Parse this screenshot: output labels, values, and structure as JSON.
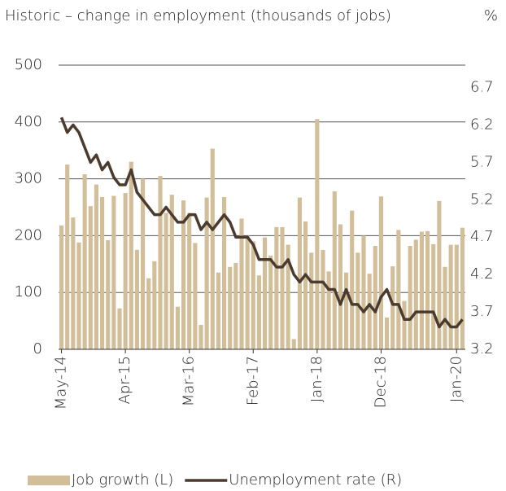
{
  "chart_data": {
    "type": "bar_line",
    "title": "Historic – change in employment (thousands of jobs)",
    "y2_label": "%",
    "categories": [
      "May-14",
      null,
      null,
      null,
      null,
      null,
      null,
      null,
      null,
      null,
      null,
      "Apr-15",
      null,
      null,
      null,
      null,
      null,
      null,
      null,
      null,
      null,
      null,
      "Mar-16",
      null,
      null,
      null,
      null,
      null,
      null,
      null,
      null,
      null,
      null,
      "Feb-17",
      null,
      null,
      null,
      null,
      null,
      null,
      null,
      null,
      null,
      null,
      "Jan-18",
      null,
      null,
      null,
      null,
      null,
      null,
      null,
      null,
      null,
      null,
      "Dec-18",
      null,
      null,
      null,
      null,
      null,
      null,
      null,
      null,
      null,
      null,
      null,
      null,
      "Jan-20",
      null
    ],
    "series": [
      {
        "name": "Job growth (L)",
        "color": "#d2bf9a",
        "axis": "y",
        "values": [
          218,
          325,
          232,
          188,
          308,
          252,
          290,
          268,
          192,
          270,
          72,
          275,
          330,
          175,
          300,
          125,
          155,
          305,
          240,
          272,
          75,
          262,
          240,
          187,
          43,
          267,
          353,
          135,
          268,
          145,
          152,
          230,
          200,
          190,
          130,
          197,
          165,
          215,
          215,
          184,
          18,
          267,
          225,
          170,
          405,
          175,
          137,
          278,
          220,
          135,
          244,
          170,
          200,
          133,
          182,
          269,
          56,
          146,
          210,
          85,
          182,
          193,
          207,
          208,
          185,
          261,
          145,
          184,
          184,
          214
        ]
      },
      {
        "name": "Unemployment rate (R)",
        "color": "#4b3a2e",
        "axis": "y2",
        "values": [
          6.3,
          6.1,
          6.2,
          6.1,
          5.9,
          5.7,
          5.8,
          5.6,
          5.7,
          5.5,
          5.4,
          5.4,
          5.6,
          5.3,
          5.2,
          5.1,
          5.0,
          5.0,
          5.1,
          5.0,
          4.9,
          4.9,
          5.0,
          5.0,
          4.8,
          4.9,
          4.8,
          4.9,
          5.0,
          4.9,
          4.7,
          4.7,
          4.7,
          4.6,
          4.4,
          4.4,
          4.4,
          4.3,
          4.3,
          4.4,
          4.2,
          4.1,
          4.2,
          4.1,
          4.1,
          4.1,
          4.0,
          4.0,
          3.8,
          4.0,
          3.8,
          3.8,
          3.7,
          3.8,
          3.7,
          3.9,
          4.0,
          3.8,
          3.8,
          3.6,
          3.6,
          3.7,
          3.7,
          3.7,
          3.7,
          3.5,
          3.6,
          3.5,
          3.5,
          3.6
        ]
      }
    ],
    "ylim": [
      0,
      500
    ],
    "yticks": [
      0,
      100,
      200,
      300,
      400,
      500
    ],
    "y2lim": [
      3.2,
      7.0
    ],
    "y2ticks": [
      3.2,
      3.7,
      4.2,
      4.7,
      5.2,
      5.7,
      6.2,
      6.7
    ],
    "grid": true,
    "legend": "bottom-left"
  }
}
